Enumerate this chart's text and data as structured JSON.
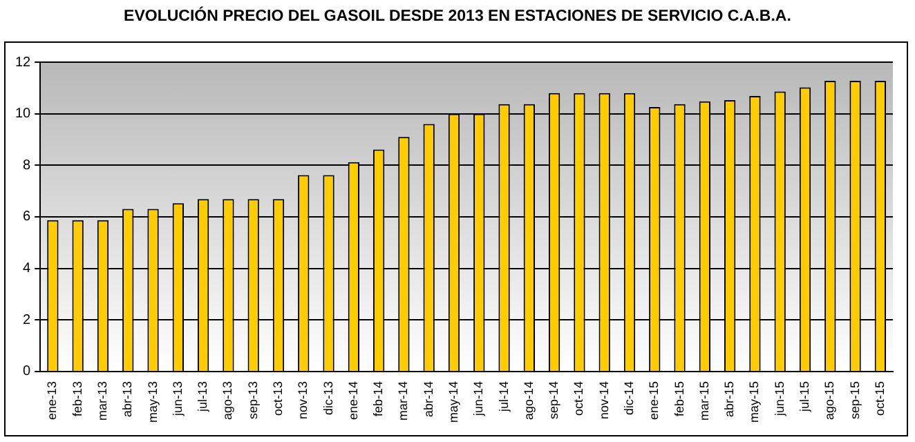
{
  "chart_data": {
    "type": "bar",
    "title": "EVOLUCIÓN PRECIO DEL GASOIL DESDE 2013 EN ESTACIONES DE SERVICIO C.A.B.A.",
    "categories": [
      "ene-13",
      "feb-13",
      "mar-13",
      "abr-13",
      "may-13",
      "jun-13",
      "jul-13",
      "ago-13",
      "sep-13",
      "oct-13",
      "nov-13",
      "dic-13",
      "ene-14",
      "feb-14",
      "mar-14",
      "abr-14",
      "may-14",
      "jun-14",
      "jul-14",
      "ago-14",
      "sep-14",
      "oct-14",
      "nov-14",
      "dic-14",
      "ene-15",
      "feb-15",
      "mar-15",
      "abr-15",
      "may-15",
      "jun-15",
      "jul-15",
      "ago-15",
      "sep-15",
      "oct-15"
    ],
    "values": [
      5.87,
      5.87,
      5.87,
      6.31,
      6.31,
      6.53,
      6.69,
      6.69,
      6.69,
      6.69,
      7.62,
      7.62,
      8.12,
      8.61,
      9.1,
      9.6,
      10,
      10,
      10.37,
      10.37,
      10.8,
      10.8,
      10.8,
      10.8,
      10.26,
      10.37,
      10.48,
      10.53,
      10.69,
      10.86,
      11.02,
      11.28,
      11.28,
      11.28
    ],
    "color": "#ffcc00",
    "ylim": [
      0,
      12
    ],
    "yticks": [
      0,
      2,
      4,
      6,
      8,
      10,
      12
    ],
    "grid": "y",
    "legend": false
  }
}
